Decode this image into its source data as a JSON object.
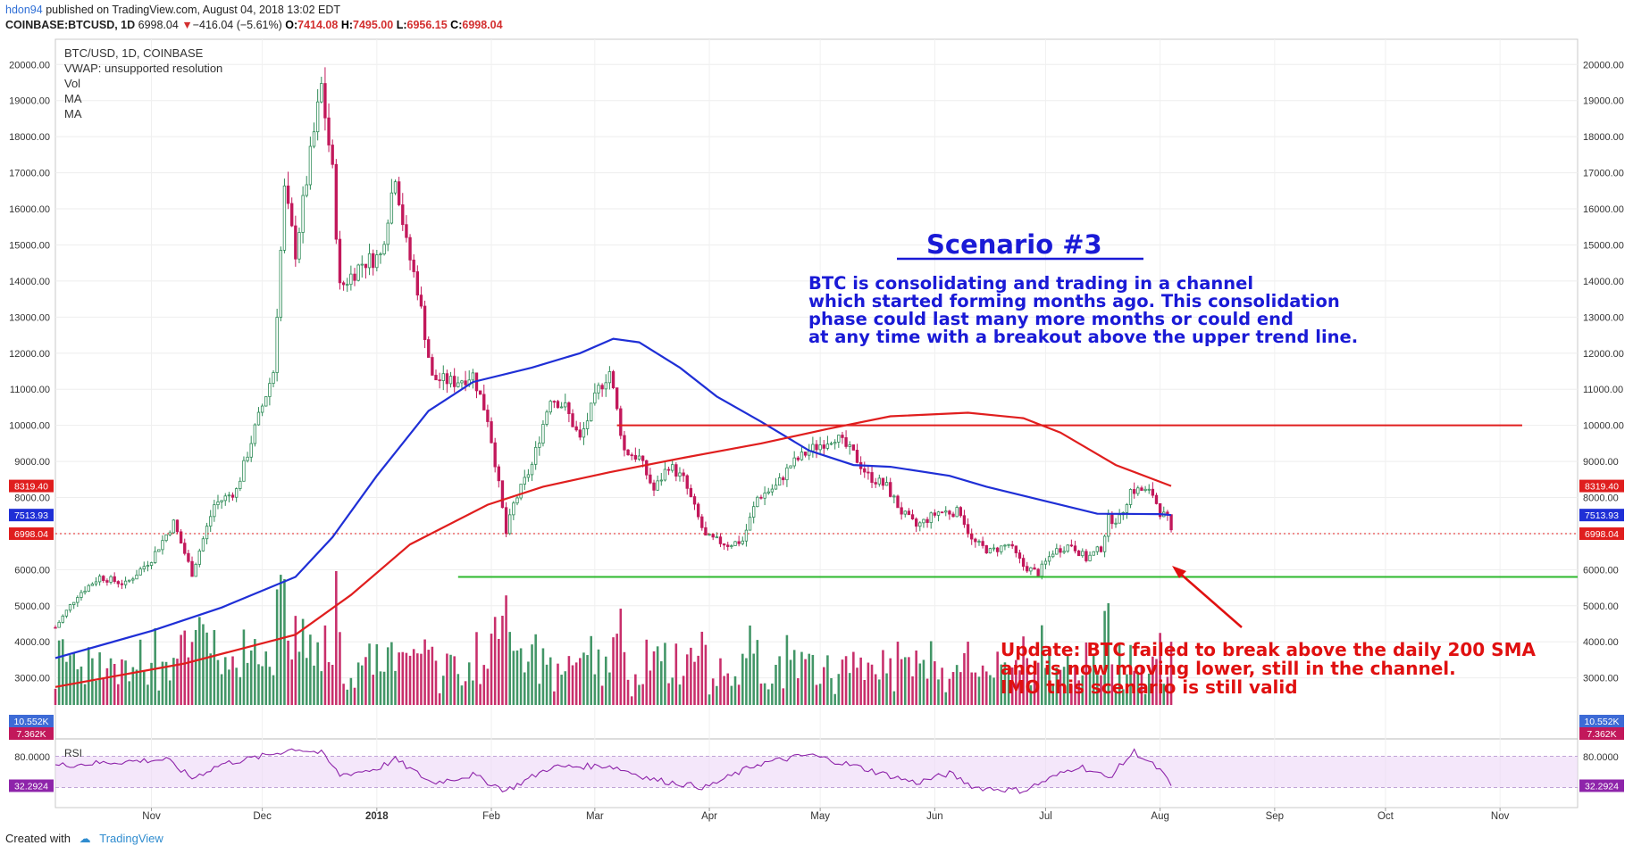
{
  "header": {
    "user": "hdon94",
    "published": "published on TradingView.com, August 04, 2018 13:02 EDT",
    "symbol": "COINBASE:BTCUSD, 1D",
    "last": "6998.04",
    "change": "−416.04 (−5.61%)",
    "o_label": "O:",
    "o": "7414.08",
    "h_label": "H:",
    "h": "7495.00",
    "l_label": "L:",
    "l": "6956.15",
    "c_label": "C:",
    "c": "6998.04"
  },
  "legend": [
    "BTC/USD, 1D, COINBASE",
    "VWAP: unsupported resolution",
    "Vol",
    "MA",
    "MA"
  ],
  "annotations": {
    "scenario_title": "Scenario #3",
    "scenario_lines": [
      "BTC is consolidating and trading in a channel",
      "which started forming months ago. This consolidation",
      "phase could last many more months or could end",
      "at any time with a breakout above the upper trend line."
    ],
    "update_lines": [
      "Update: BTC failed to break above the daily 200 SMA",
      "and is now moving lower, still in the channel.",
      "IMO this scenario is still valid"
    ]
  },
  "footer": {
    "created_with": "Created with",
    "brand": "TradingView"
  },
  "colors": {
    "up": "#2e8b57",
    "down": "#c2185b",
    "ma_blue": "#1f2fd6",
    "ma_red": "#e01e1e",
    "support": "#2db82d",
    "resistance": "#e01e1e",
    "scenario": "#1a1ad6",
    "update": "#e01010",
    "rsi": "#8e24aa",
    "rsi_band": "#ecd7f7",
    "vol_ma": "#b6c8ec"
  },
  "chart_data": {
    "type": "candlestick",
    "title": "BTC/USD, 1D, COINBASE",
    "ylim": [
      2250,
      20700
    ],
    "y_ticks": [
      3000,
      4000,
      5000,
      6000,
      7000,
      8000,
      9000,
      10000,
      11000,
      12000,
      13000,
      14000,
      15000,
      16000,
      17000,
      18000,
      19000,
      20000
    ],
    "y_tick_labels": [
      "3000.00",
      "4000.00",
      "5000.00",
      "6000.00",
      "7000.00",
      "8000.00",
      "9000.00",
      "10000.00",
      "11000.00",
      "12000.00",
      "13000.00",
      "14000.00",
      "15000.00",
      "16000.00",
      "17000.00",
      "18000.00",
      "19000.00",
      "20000.00"
    ],
    "x_range": [
      "2017-10-06",
      "2018-11-22"
    ],
    "x_ticks": [
      {
        "date": "2017-11-01",
        "label": "Nov"
      },
      {
        "date": "2017-12-01",
        "label": "Dec"
      },
      {
        "date": "2018-01-01",
        "label": "2018"
      },
      {
        "date": "2018-02-01",
        "label": "Feb"
      },
      {
        "date": "2018-03-01",
        "label": "Mar"
      },
      {
        "date": "2018-04-01",
        "label": "Apr"
      },
      {
        "date": "2018-05-01",
        "label": "May"
      },
      {
        "date": "2018-06-01",
        "label": "Jun"
      },
      {
        "date": "2018-07-01",
        "label": "Jul"
      },
      {
        "date": "2018-08-01",
        "label": "Aug"
      },
      {
        "date": "2018-09-01",
        "label": "Sep"
      },
      {
        "date": "2018-10-01",
        "label": "Oct"
      },
      {
        "date": "2018-11-01",
        "label": "Nov"
      }
    ],
    "price_series": [
      [
        "2017-10-06",
        4400
      ],
      [
        "2017-10-12",
        5300
      ],
      [
        "2017-10-18",
        5800
      ],
      [
        "2017-10-25",
        5600
      ],
      [
        "2017-11-01",
        6300
      ],
      [
        "2017-11-07",
        7300
      ],
      [
        "2017-11-12",
        5900
      ],
      [
        "2017-11-18",
        7800
      ],
      [
        "2017-11-24",
        8200
      ],
      [
        "2017-11-29",
        9900
      ],
      [
        "2017-12-04",
        11500
      ],
      [
        "2017-12-07",
        16500
      ],
      [
        "2017-12-10",
        14800
      ],
      [
        "2017-12-13",
        16800
      ],
      [
        "2017-12-17",
        19400
      ],
      [
        "2017-12-20",
        17000
      ],
      [
        "2017-12-22",
        13800
      ],
      [
        "2017-12-28",
        14500
      ],
      [
        "2018-01-02",
        14700
      ],
      [
        "2018-01-06",
        17000
      ],
      [
        "2018-01-09",
        15000
      ],
      [
        "2018-01-12",
        13800
      ],
      [
        "2018-01-16",
        11300
      ],
      [
        "2018-01-22",
        11200
      ],
      [
        "2018-01-27",
        11400
      ],
      [
        "2018-01-31",
        10200
      ],
      [
        "2018-02-02",
        9000
      ],
      [
        "2018-02-05",
        7000
      ],
      [
        "2018-02-07",
        7800
      ],
      [
        "2018-02-12",
        8900
      ],
      [
        "2018-02-17",
        10800
      ],
      [
        "2018-02-21",
        10500
      ],
      [
        "2018-02-25",
        9600
      ],
      [
        "2018-03-02",
        11000
      ],
      [
        "2018-03-05",
        11500
      ],
      [
        "2018-03-09",
        9300
      ],
      [
        "2018-03-13",
        9100
      ],
      [
        "2018-03-17",
        8200
      ],
      [
        "2018-03-21",
        8900
      ],
      [
        "2018-03-25",
        8500
      ],
      [
        "2018-03-31",
        6900
      ],
      [
        "2018-04-06",
        6700
      ],
      [
        "2018-04-10",
        6800
      ],
      [
        "2018-04-14",
        8000
      ],
      [
        "2018-04-19",
        8300
      ],
      [
        "2018-04-23",
        8900
      ],
      [
        "2018-04-28",
        9300
      ],
      [
        "2018-05-05",
        9700
      ],
      [
        "2018-05-10",
        9200
      ],
      [
        "2018-05-14",
        8600
      ],
      [
        "2018-05-19",
        8300
      ],
      [
        "2018-05-23",
        7600
      ],
      [
        "2018-05-27",
        7200
      ],
      [
        "2018-06-02",
        7600
      ],
      [
        "2018-06-08",
        7600
      ],
      [
        "2018-06-11",
        6800
      ],
      [
        "2018-06-16",
        6500
      ],
      [
        "2018-06-21",
        6700
      ],
      [
        "2018-06-25",
        6100
      ],
      [
        "2018-06-29",
        5900
      ],
      [
        "2018-07-03",
        6500
      ],
      [
        "2018-07-08",
        6700
      ],
      [
        "2018-07-12",
        6300
      ],
      [
        "2018-07-16",
        6600
      ],
      [
        "2018-07-18",
        7400
      ],
      [
        "2018-07-21",
        7400
      ],
      [
        "2018-07-24",
        8200
      ],
      [
        "2018-07-27",
        8200
      ],
      [
        "2018-07-30",
        8100
      ],
      [
        "2018-08-01",
        7600
      ],
      [
        "2018-08-03",
        7400
      ],
      [
        "2018-08-04",
        6998
      ]
    ],
    "series": [
      {
        "type": "sma",
        "points": [
          [
            "2017-10-06",
            3550
          ],
          [
            "2017-11-01",
            4300
          ],
          [
            "2017-11-20",
            4950
          ],
          [
            "2017-12-10",
            5800
          ],
          [
            "2017-12-20",
            6900
          ],
          [
            "2018-01-01",
            8600
          ],
          [
            "2018-01-15",
            10400
          ],
          [
            "2018-01-27",
            11200
          ],
          [
            "2018-02-12",
            11600
          ],
          [
            "2018-02-25",
            12000
          ],
          [
            "2018-03-06",
            12400
          ],
          [
            "2018-03-13",
            12300
          ],
          [
            "2018-03-24",
            11600
          ],
          [
            "2018-04-03",
            10800
          ],
          [
            "2018-04-15",
            10100
          ],
          [
            "2018-04-28",
            9300
          ],
          [
            "2018-05-10",
            8900
          ],
          [
            "2018-05-20",
            8850
          ],
          [
            "2018-06-05",
            8600
          ],
          [
            "2018-06-15",
            8300
          ],
          [
            "2018-07-01",
            7900
          ],
          [
            "2018-07-15",
            7550
          ],
          [
            "2018-08-01",
            7540
          ],
          [
            "2018-08-04",
            7514
          ]
        ]
      },
      {
        "type": "sma",
        "points": [
          [
            "2017-10-06",
            2750
          ],
          [
            "2017-11-10",
            3400
          ],
          [
            "2017-12-10",
            4200
          ],
          [
            "2017-12-25",
            5300
          ],
          [
            "2018-01-10",
            6700
          ],
          [
            "2018-01-31",
            7800
          ],
          [
            "2018-02-15",
            8300
          ],
          [
            "2018-03-05",
            8700
          ],
          [
            "2018-03-25",
            9100
          ],
          [
            "2018-04-15",
            9500
          ],
          [
            "2018-05-03",
            9900
          ],
          [
            "2018-05-20",
            10250
          ],
          [
            "2018-06-10",
            10350
          ],
          [
            "2018-06-25",
            10200
          ],
          [
            "2018-07-05",
            9800
          ],
          [
            "2018-07-20",
            8900
          ],
          [
            "2018-08-04",
            8319
          ]
        ]
      }
    ],
    "lines": {
      "resistance": {
        "y": 10000,
        "from": "2018-03-07",
        "to": "2018-11-07"
      },
      "support": {
        "y": 5800,
        "from": "2018-01-23",
        "to": "2018-11-22"
      },
      "last_price": {
        "y": 6998.04
      }
    },
    "price_labels": [
      {
        "value": 8319.4,
        "text": "8319.40",
        "color": "#e01e1e"
      },
      {
        "value": 7513.93,
        "text": "7513.93",
        "color": "#1f2fd6"
      },
      {
        "value": 6998.04,
        "text": "6998.04",
        "color": "#e01e1e"
      }
    ],
    "volume_labels": [
      {
        "text": "10.552K",
        "color": "#3d6bd6"
      },
      {
        "text": "7.362K",
        "color": "#c2185b"
      }
    ],
    "rsi": {
      "label": "RSI",
      "levels": [
        70,
        30
      ],
      "tick_labels": [
        "80.0000",
        "32.2924"
      ],
      "last": 32.29,
      "points": [
        [
          "2017-10-06",
          58
        ],
        [
          "2017-10-20",
          62
        ],
        [
          "2017-11-05",
          66
        ],
        [
          "2017-11-12",
          42
        ],
        [
          "2017-11-20",
          60
        ],
        [
          "2017-12-01",
          70
        ],
        [
          "2017-12-10",
          80
        ],
        [
          "2017-12-17",
          74
        ],
        [
          "2017-12-22",
          46
        ],
        [
          "2018-01-01",
          54
        ],
        [
          "2018-01-06",
          66
        ],
        [
          "2018-01-16",
          36
        ],
        [
          "2018-01-27",
          46
        ],
        [
          "2018-02-05",
          26
        ],
        [
          "2018-02-17",
          56
        ],
        [
          "2018-03-05",
          58
        ],
        [
          "2018-03-17",
          40
        ],
        [
          "2018-03-31",
          30
        ],
        [
          "2018-04-14",
          60
        ],
        [
          "2018-04-28",
          72
        ],
        [
          "2018-05-10",
          58
        ],
        [
          "2018-05-27",
          36
        ],
        [
          "2018-06-05",
          48
        ],
        [
          "2018-06-12",
          30
        ],
        [
          "2018-06-25",
          26
        ],
        [
          "2018-07-10",
          58
        ],
        [
          "2018-07-18",
          42
        ],
        [
          "2018-07-25",
          76
        ],
        [
          "2018-08-01",
          52
        ],
        [
          "2018-08-04",
          32.29
        ]
      ]
    }
  }
}
